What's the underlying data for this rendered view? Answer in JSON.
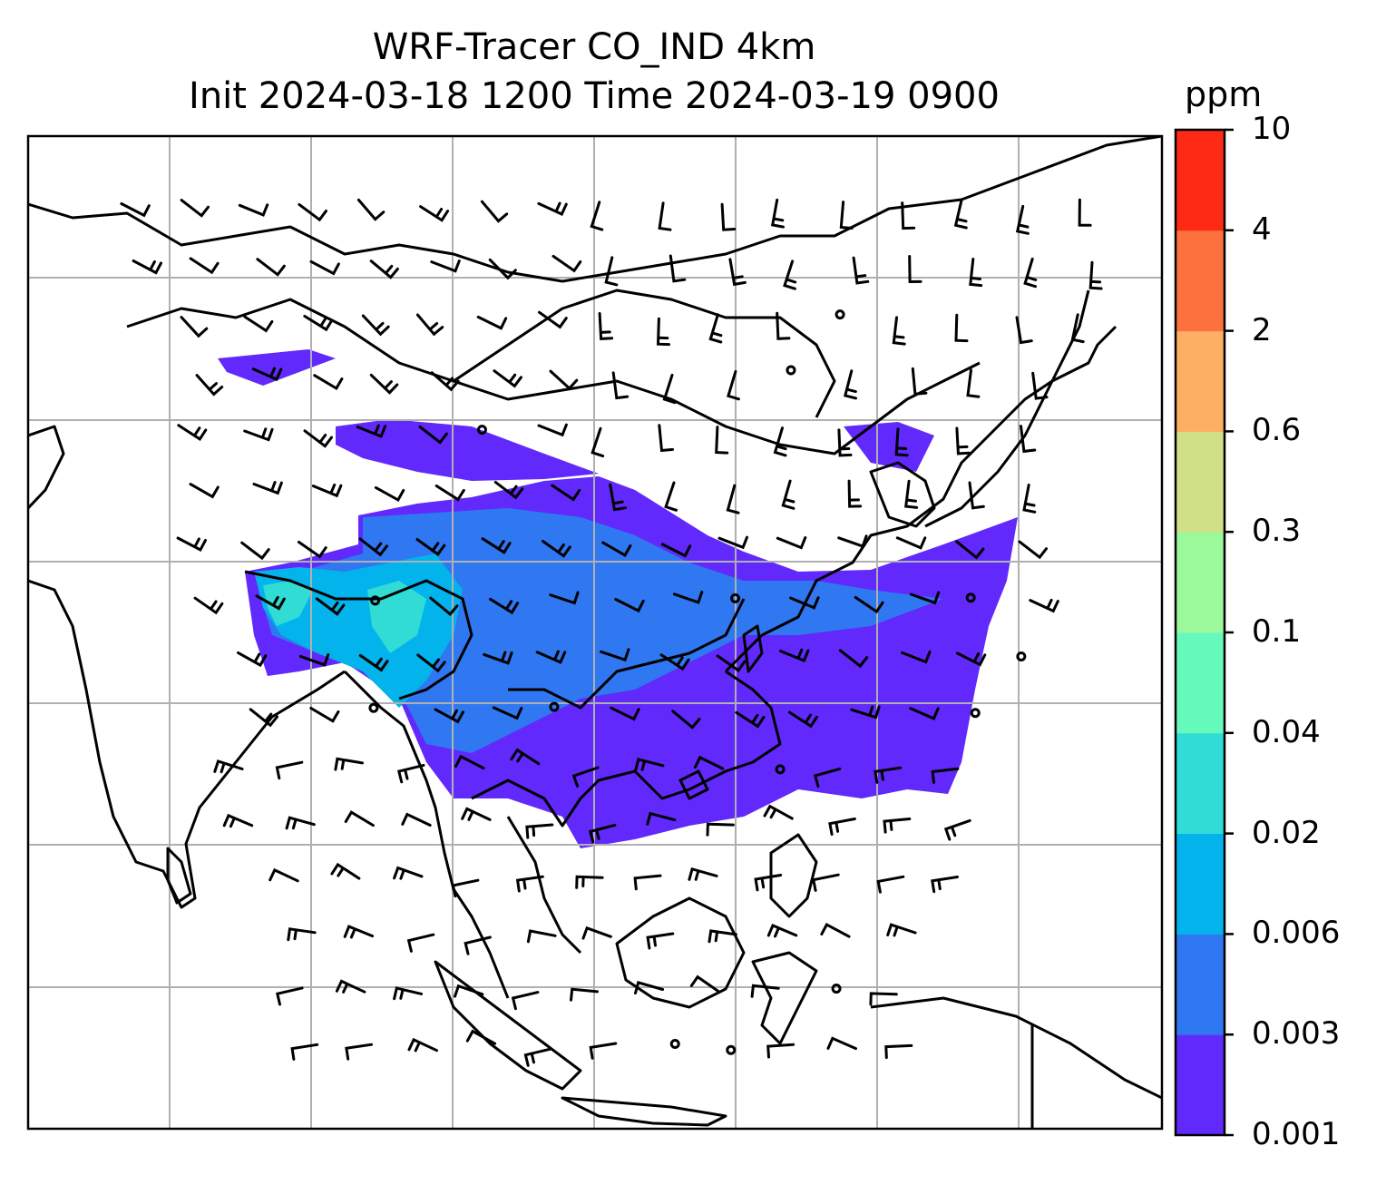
{
  "title": {
    "line1": "WRF-Tracer CO_IND 4km",
    "line2": "Init 2024-03-18 1200 Time 2024-03-19 0900"
  },
  "colorbar": {
    "units": "ppm",
    "levels": [
      "0.001",
      "0.003",
      "0.006",
      "0.02",
      "0.04",
      "0.1",
      "0.3",
      "0.6",
      "2",
      "4",
      "10"
    ],
    "colors": [
      "#6129fb",
      "#3077f2",
      "#03b3ec",
      "#31dcd4",
      "#66f9bc",
      "#9bf99b",
      "#d0e087",
      "#fdb063",
      "#fd713f",
      "#ff2a15"
    ]
  },
  "map": {
    "gridlines": true,
    "gridline_color": "#b0b0b0",
    "coastline_color": "#000000"
  }
}
